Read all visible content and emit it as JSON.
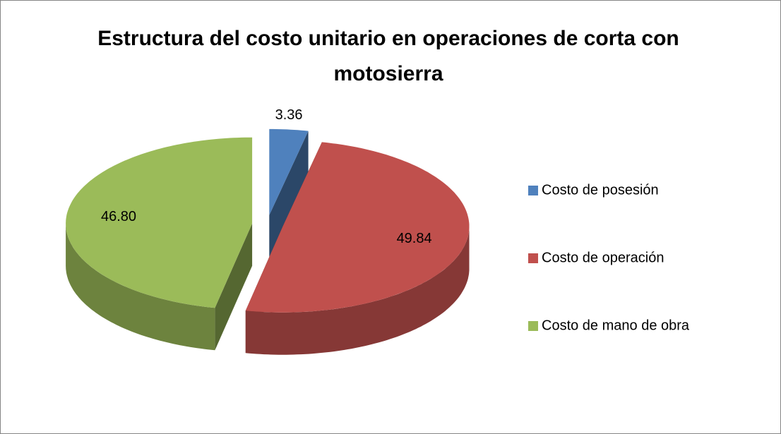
{
  "chart_data": {
    "type": "pie",
    "title": "Estructura del costo unitario en operaciones de corta con motosierra",
    "categories": [
      "Costo de posesión",
      "Costo de operación",
      "Costo de mano de obra"
    ],
    "values": [
      3.36,
      49.84,
      46.8
    ],
    "value_labels": [
      "3.36",
      "49.84",
      "46.80"
    ],
    "colors": [
      "#4f81bd",
      "#c0504d",
      "#9bbb59"
    ],
    "legend": "right"
  }
}
